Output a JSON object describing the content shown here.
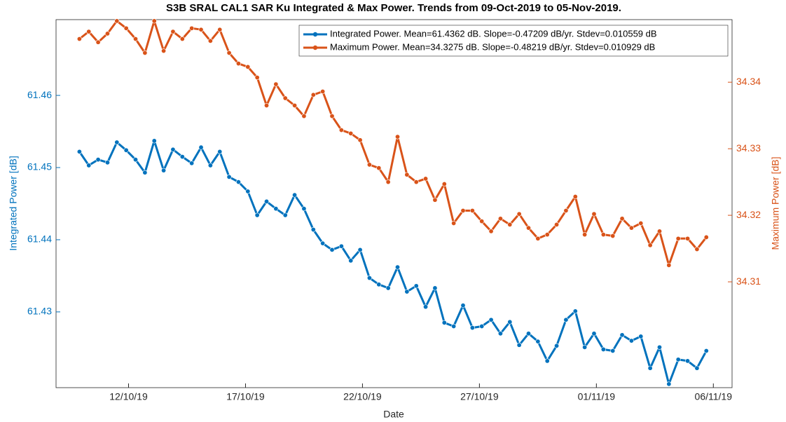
{
  "chart_data": {
    "type": "line",
    "title": "S3B SRAL CAL1 SAR Ku Integrated & Max Power. Trends from 09-Oct-2019 to 05-Nov-2019.",
    "x_label": "Date",
    "y_label": "Integrated Power [dB]",
    "y2_label": "Maximum Power [dB]",
    "x": [
      0.9,
      1.3,
      1.7,
      2.1,
      2.5,
      2.9,
      3.3,
      3.7,
      4.1,
      4.5,
      4.9,
      5.3,
      5.7,
      6.1,
      6.5,
      6.9,
      7.3,
      7.7,
      8.1,
      8.5,
      8.9,
      9.3,
      9.7,
      10.1,
      10.5,
      10.9,
      11.3,
      11.7,
      12.1,
      12.5,
      12.9,
      13.3,
      13.7,
      14.1,
      14.5,
      14.9,
      15.3,
      15.7,
      16.1,
      16.5,
      16.9,
      17.3,
      17.7,
      18.1,
      18.5,
      18.9,
      19.3,
      19.7,
      20.1,
      20.5,
      20.9,
      21.3,
      21.7,
      22.1,
      22.5,
      22.9,
      23.3,
      23.7,
      24.1,
      24.5,
      24.9,
      25.3,
      25.7,
      26.1,
      26.5,
      26.9,
      27.3,
      27.7
    ],
    "xlim": [
      -0.1,
      28.8
    ],
    "xticks": [
      {
        "value": 3,
        "label": "12/10/19"
      },
      {
        "value": 8,
        "label": "17/10/19"
      },
      {
        "value": 13,
        "label": "22/10/19"
      },
      {
        "value": 18,
        "label": "27/10/19"
      },
      {
        "value": 23,
        "label": "01/11/19"
      },
      {
        "value": 28,
        "label": "06/11/19"
      }
    ],
    "ylim": [
      61.4195,
      61.4705
    ],
    "yticks": [
      61.43,
      61.44,
      61.45,
      61.46
    ],
    "y2lim": [
      34.2941,
      34.3494
    ],
    "y2ticks": [
      34.31,
      34.32,
      34.33,
      34.34
    ],
    "legend_position": "upper right",
    "series": [
      {
        "name": "Integrated Power. Mean=61.4362 dB. Slope=-0.47209 dB/yr. Stdev=0.010559 dB",
        "color": "#0072bd",
        "axis": "y",
        "values": [
          61.4522,
          61.4503,
          61.4511,
          61.4507,
          61.4535,
          61.4524,
          61.4511,
          61.4493,
          61.4537,
          61.4496,
          61.4525,
          61.4515,
          61.4506,
          61.4528,
          61.4503,
          61.4522,
          61.4487,
          61.448,
          61.4467,
          61.4434,
          61.4453,
          61.4443,
          61.4434,
          61.4462,
          61.4443,
          61.4414,
          61.4395,
          61.4386,
          61.4391,
          61.4371,
          61.4386,
          61.4347,
          61.4338,
          61.4333,
          61.4362,
          61.4328,
          61.4336,
          61.4307,
          61.4333,
          61.4285,
          61.428,
          61.4309,
          61.4278,
          61.428,
          61.4289,
          61.427,
          61.4286,
          61.4254,
          61.427,
          61.4259,
          61.4232,
          61.4253,
          61.4289,
          61.4301,
          61.4251,
          61.427,
          61.4248,
          61.4246,
          61.4268,
          61.426,
          61.4266,
          61.4222,
          61.4251,
          61.42,
          61.4234,
          61.4232,
          61.4222,
          61.4246
        ]
      },
      {
        "name": "Maximum Power. Mean=34.3275 dB. Slope=-0.48219 dB/yr. Stdev=0.010929 dB",
        "color": "#d95319",
        "axis": "y2",
        "values": [
          34.3465,
          34.3476,
          34.346,
          34.3473,
          34.3492,
          34.3481,
          34.3465,
          34.3444,
          34.3492,
          34.3447,
          34.3476,
          34.3465,
          34.3481,
          34.3479,
          34.3462,
          34.3479,
          34.3444,
          34.3428,
          34.3423,
          34.3407,
          34.3365,
          34.3397,
          34.3376,
          34.3365,
          34.3349,
          34.3381,
          34.3386,
          34.3349,
          34.3328,
          34.3323,
          34.3313,
          34.3276,
          34.3271,
          34.325,
          34.3318,
          34.3261,
          34.325,
          34.3255,
          34.3223,
          34.3247,
          34.3188,
          34.3207,
          34.3207,
          34.3191,
          34.3176,
          34.3195,
          34.3186,
          34.3202,
          34.3181,
          34.3165,
          34.3171,
          34.3186,
          34.3207,
          34.3228,
          34.3171,
          34.3202,
          34.3171,
          34.3169,
          34.3195,
          34.3181,
          34.3188,
          34.3155,
          34.3176,
          34.3125,
          34.3165,
          34.3165,
          34.3149,
          34.3167
        ]
      }
    ]
  }
}
